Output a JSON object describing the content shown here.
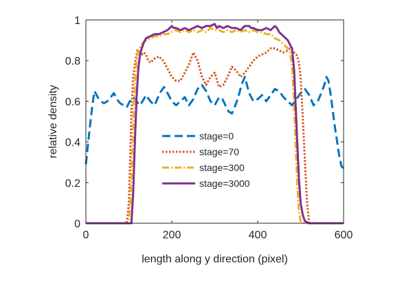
{
  "chart_data": {
    "type": "line",
    "title": "",
    "xlabel": "length along y direction (pixel)",
    "ylabel": "relative density",
    "xlim": [
      0,
      600
    ],
    "ylim": [
      0,
      1
    ],
    "xticks": [
      0,
      200,
      400,
      600
    ],
    "yticks": [
      0,
      0.2,
      0.4,
      0.6,
      0.8,
      1
    ],
    "xtick_labels": [
      "0",
      "200",
      "400",
      "600"
    ],
    "ytick_labels": [
      "0",
      "0.2",
      "0.4",
      "0.6",
      "0.8",
      "1"
    ],
    "grid": false,
    "legend_position": "center",
    "series": [
      {
        "name": "stage=0",
        "color": "#0072BD",
        "style": "dashed",
        "x": [
          0,
          8,
          15,
          20,
          25,
          30,
          35,
          42,
          50,
          58,
          65,
          72,
          80,
          88,
          95,
          102,
          110,
          118,
          125,
          132,
          140,
          150,
          160,
          168,
          175,
          182,
          190,
          200,
          210,
          220,
          230,
          240,
          250,
          260,
          270,
          280,
          290,
          300,
          310,
          318,
          325,
          332,
          340,
          348,
          355,
          362,
          370,
          380,
          390,
          400,
          410,
          420,
          430,
          440,
          450,
          460,
          470,
          480,
          490,
          500,
          510,
          520,
          530,
          540,
          548,
          555,
          560,
          565,
          570,
          575,
          580,
          585,
          590,
          595,
          600
        ],
        "y": [
          0.29,
          0.45,
          0.58,
          0.65,
          0.63,
          0.61,
          0.6,
          0.59,
          0.6,
          0.62,
          0.64,
          0.61,
          0.59,
          0.58,
          0.57,
          0.6,
          0.62,
          0.6,
          0.58,
          0.6,
          0.63,
          0.6,
          0.58,
          0.62,
          0.65,
          0.67,
          0.64,
          0.6,
          0.58,
          0.6,
          0.62,
          0.58,
          0.61,
          0.66,
          0.68,
          0.65,
          0.6,
          0.58,
          0.62,
          0.61,
          0.58,
          0.55,
          0.54,
          0.58,
          0.62,
          0.68,
          0.72,
          0.64,
          0.6,
          0.61,
          0.63,
          0.6,
          0.63,
          0.66,
          0.65,
          0.62,
          0.6,
          0.58,
          0.61,
          0.64,
          0.66,
          0.63,
          0.58,
          0.6,
          0.64,
          0.68,
          0.72,
          0.7,
          0.63,
          0.55,
          0.47,
          0.4,
          0.33,
          0.28,
          0.27
        ]
      },
      {
        "name": "stage=70",
        "color": "#D95319",
        "style": "dotted",
        "x": [
          0,
          95,
          100,
          103,
          106,
          110,
          115,
          120,
          125,
          130,
          135,
          140,
          145,
          150,
          160,
          170,
          180,
          190,
          200,
          210,
          220,
          230,
          240,
          250,
          260,
          270,
          280,
          290,
          300,
          310,
          320,
          330,
          340,
          350,
          360,
          370,
          380,
          390,
          400,
          410,
          420,
          430,
          440,
          450,
          460,
          470,
          475,
          480,
          485,
          490,
          495,
          500,
          505,
          510,
          515,
          520,
          600
        ],
        "y": [
          0,
          0,
          0.1,
          0.32,
          0.55,
          0.72,
          0.8,
          0.85,
          0.84,
          0.83,
          0.84,
          0.83,
          0.8,
          0.79,
          0.81,
          0.82,
          0.8,
          0.76,
          0.72,
          0.7,
          0.7,
          0.74,
          0.78,
          0.84,
          0.8,
          0.72,
          0.68,
          0.72,
          0.74,
          0.67,
          0.68,
          0.72,
          0.77,
          0.75,
          0.72,
          0.74,
          0.77,
          0.8,
          0.82,
          0.83,
          0.84,
          0.86,
          0.86,
          0.85,
          0.84,
          0.85,
          0.86,
          0.85,
          0.84,
          0.83,
          0.8,
          0.72,
          0.52,
          0.3,
          0.1,
          0,
          0
        ]
      },
      {
        "name": "stage=300",
        "color": "#EDB120",
        "style": "dashdot",
        "x": [
          0,
          100,
          104,
          108,
          112,
          116,
          120,
          125,
          130,
          140,
          150,
          160,
          170,
          180,
          190,
          200,
          210,
          220,
          230,
          240,
          250,
          260,
          270,
          280,
          290,
          300,
          310,
          320,
          330,
          340,
          350,
          360,
          370,
          380,
          390,
          400,
          410,
          420,
          430,
          440,
          450,
          460,
          470,
          475,
          480,
          484,
          488,
          492,
          496,
          500,
          505,
          510,
          600
        ],
        "y": [
          0,
          0,
          0.12,
          0.35,
          0.58,
          0.75,
          0.83,
          0.86,
          0.88,
          0.9,
          0.91,
          0.92,
          0.92,
          0.93,
          0.93,
          0.94,
          0.95,
          0.94,
          0.95,
          0.94,
          0.95,
          0.94,
          0.95,
          0.94,
          0.96,
          0.95,
          0.95,
          0.94,
          0.95,
          0.94,
          0.95,
          0.94,
          0.95,
          0.94,
          0.95,
          0.94,
          0.94,
          0.93,
          0.93,
          0.91,
          0.9,
          0.88,
          0.86,
          0.84,
          0.78,
          0.62,
          0.4,
          0.2,
          0.06,
          0.01,
          0,
          0,
          0
        ]
      },
      {
        "name": "stage=3000",
        "color": "#7E2F8E",
        "style": "solid",
        "x": [
          0,
          106,
          110,
          114,
          118,
          122,
          126,
          130,
          135,
          140,
          150,
          160,
          170,
          180,
          190,
          200,
          205,
          210,
          220,
          230,
          240,
          250,
          260,
          270,
          280,
          290,
          300,
          305,
          310,
          320,
          330,
          340,
          350,
          360,
          370,
          380,
          385,
          390,
          400,
          410,
          420,
          430,
          440,
          445,
          450,
          460,
          470,
          480,
          485,
          488,
          492,
          496,
          500,
          505,
          510,
          515,
          520,
          525,
          600
        ],
        "y": [
          0,
          0,
          0.15,
          0.4,
          0.62,
          0.76,
          0.83,
          0.86,
          0.89,
          0.91,
          0.92,
          0.93,
          0.93,
          0.94,
          0.95,
          0.97,
          0.96,
          0.96,
          0.95,
          0.96,
          0.95,
          0.96,
          0.97,
          0.96,
          0.97,
          0.97,
          0.98,
          0.96,
          0.97,
          0.96,
          0.97,
          0.96,
          0.96,
          0.95,
          0.97,
          0.97,
          0.96,
          0.96,
          0.95,
          0.95,
          0.96,
          0.95,
          0.97,
          0.96,
          0.94,
          0.92,
          0.9,
          0.86,
          0.75,
          0.6,
          0.4,
          0.22,
          0.1,
          0.04,
          0.01,
          0.005,
          0,
          0,
          0
        ]
      }
    ]
  }
}
